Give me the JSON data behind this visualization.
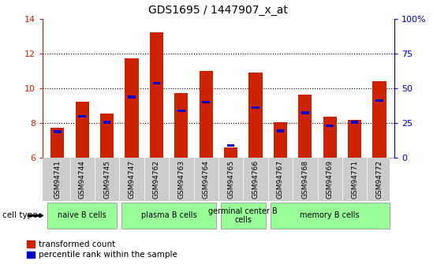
{
  "title": "GDS1695 / 1447907_x_at",
  "samples": [
    "GSM94741",
    "GSM94744",
    "GSM94745",
    "GSM94747",
    "GSM94762",
    "GSM94763",
    "GSM94764",
    "GSM94765",
    "GSM94766",
    "GSM94767",
    "GSM94768",
    "GSM94769",
    "GSM94771",
    "GSM94772"
  ],
  "transformed_count": [
    7.75,
    9.25,
    8.55,
    11.75,
    13.25,
    9.75,
    11.0,
    6.6,
    10.9,
    8.05,
    9.65,
    8.35,
    8.2,
    10.4
  ],
  "percentile_rank": [
    7.5,
    8.4,
    8.05,
    9.5,
    10.3,
    8.7,
    9.2,
    6.7,
    8.9,
    7.55,
    8.6,
    7.85,
    8.05,
    9.3
  ],
  "ylim_left": [
    6,
    14
  ],
  "ylim_right": [
    0,
    100
  ],
  "yticks_left": [
    6,
    8,
    10,
    12,
    14
  ],
  "yticks_right": [
    0,
    25,
    50,
    75,
    100
  ],
  "bar_color": "#cc2200",
  "percentile_color": "#0000cc",
  "bar_width": 0.55,
  "background_color": "#ffffff",
  "tick_color_left": "#cc2200",
  "tick_color_right": "#0000cc",
  "cell_type_label": "cell type",
  "legend_entries": [
    "transformed count",
    "percentile rank within the sample"
  ],
  "group_data": [
    {
      "start": 0,
      "end": 2,
      "label": "naive B cells"
    },
    {
      "start": 3,
      "end": 6,
      "label": "plasma B cells"
    },
    {
      "start": 7,
      "end": 8,
      "label": "germinal center B\ncells"
    },
    {
      "start": 9,
      "end": 13,
      "label": "memory B cells"
    }
  ],
  "group_color": "#99ff99",
  "sample_bg_color": "#cccccc"
}
